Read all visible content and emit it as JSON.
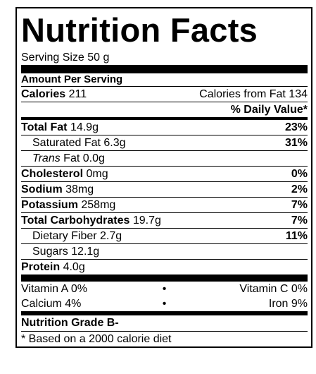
{
  "title": "Nutrition Facts",
  "serving_size": "Serving Size 50 g",
  "amount_per_serving": "Amount Per Serving",
  "calories": {
    "label": "Calories",
    "value": "211",
    "from_fat": "Calories from Fat 134"
  },
  "daily_value_header": "% Daily Value*",
  "rows": [
    {
      "label": "Total Fat",
      "amount": "14.9g",
      "dv": "23%",
      "bold": true,
      "indent": false
    },
    {
      "label": "Saturated Fat",
      "amount": "6.3g",
      "dv": "31%",
      "bold": false,
      "indent": true
    },
    {
      "label_italic": "Trans",
      "label": "Fat",
      "amount": "0.0g",
      "bold": false,
      "indent": true
    },
    {
      "label": "Cholesterol",
      "amount": "0mg",
      "dv": "0%",
      "bold": true,
      "indent": false
    },
    {
      "label": "Sodium",
      "amount": "38mg",
      "dv": "2%",
      "bold": true,
      "indent": false
    },
    {
      "label": "Potassium",
      "amount": "258mg",
      "dv": "7%",
      "bold": true,
      "indent": false
    },
    {
      "label": "Total Carbohydrates",
      "amount": "19.7g",
      "dv": "7%",
      "bold": true,
      "indent": false
    },
    {
      "label": "Dietary Fiber",
      "amount": "2.7g",
      "dv": "11%",
      "bold": false,
      "indent": true
    },
    {
      "label": "Sugars",
      "amount": "12.1g",
      "bold": false,
      "indent": true
    },
    {
      "label": "Protein",
      "amount": "4.0g",
      "bold": true,
      "indent": false
    }
  ],
  "vitamins": [
    {
      "left": "Vitamin A 0%",
      "sep": "•",
      "right": "Vitamin C 0%"
    },
    {
      "left": "Calcium 4%",
      "sep": "•",
      "right": "Iron 9%"
    }
  ],
  "grade": "Nutrition Grade B-",
  "footnote": "* Based on a 2000 calorie diet"
}
